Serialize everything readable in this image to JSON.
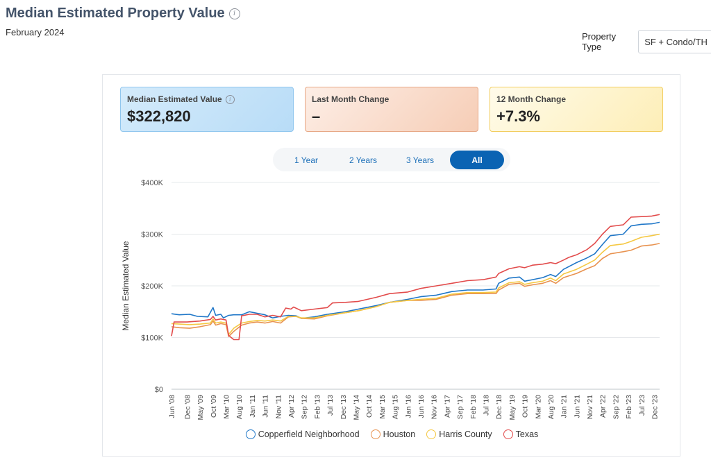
{
  "header": {
    "title": "Median Estimated Property Value",
    "subtitle": "February 2024",
    "property_type_label": "Property Type",
    "property_type_value": "SF + Condo/TH"
  },
  "cards": [
    {
      "label": "Median Estimated Value",
      "value": "$322,820",
      "has_info": true
    },
    {
      "label": "Last Month Change",
      "value": "–",
      "has_info": false
    },
    {
      "label": "12 Month Change",
      "value": "+7.3%",
      "has_info": false
    }
  ],
  "ranges": {
    "items": [
      "1 Year",
      "2 Years",
      "3 Years",
      "All"
    ],
    "active": "All"
  },
  "chart_data": {
    "type": "line",
    "title": "",
    "xlabel": "",
    "ylabel": "Median Estimated Value",
    "ylim": [
      0,
      400000
    ],
    "yticks": [
      0,
      100000,
      200000,
      300000,
      400000
    ],
    "ytick_labels": [
      "$0",
      "$100K",
      "$200K",
      "$300K",
      "$400K"
    ],
    "xlim": [
      "2008-06",
      "2024-02"
    ],
    "xtick_labels": [
      "Jun '08",
      "Dec '08",
      "May '09",
      "Oct '09",
      "Mar '10",
      "Aug '10",
      "Jan '11",
      "Jun '11",
      "Nov '11",
      "Apr '12",
      "Sep '12",
      "Feb '13",
      "Jul '13",
      "Dec '13",
      "May '14",
      "Oct '14",
      "Mar '15",
      "Aug '15",
      "Jan '16",
      "Jun '16",
      "Nov '16",
      "Apr '17",
      "Sep '17",
      "Feb '18",
      "Jul '18",
      "Dec '18",
      "May '19",
      "Oct '19",
      "Mar '20",
      "Aug '20",
      "Jan '21",
      "Jun '21",
      "Nov '21",
      "Apr '22",
      "Sep '22",
      "Feb '23",
      "Jul '23",
      "Dec '23"
    ],
    "grid": true,
    "legend": "bottom",
    "series": [
      {
        "name": "Copperfield Neighborhood",
        "color": "#1f77c8",
        "points": [
          [
            "2008-06",
            146000
          ],
          [
            "2008-09",
            144000
          ],
          [
            "2009-01",
            145000
          ],
          [
            "2009-04",
            141000
          ],
          [
            "2009-08",
            140000
          ],
          [
            "2009-10",
            158000
          ],
          [
            "2009-11",
            143000
          ],
          [
            "2010-01",
            145000
          ],
          [
            "2010-02",
            138000
          ],
          [
            "2010-04",
            143000
          ],
          [
            "2010-06",
            144000
          ],
          [
            "2010-09",
            144000
          ],
          [
            "2010-12",
            150000
          ],
          [
            "2011-03",
            147000
          ],
          [
            "2011-06",
            144000
          ],
          [
            "2011-09",
            138000
          ],
          [
            "2011-12",
            141000
          ],
          [
            "2012-03",
            143000
          ],
          [
            "2012-06",
            142000
          ],
          [
            "2012-08",
            137000
          ],
          [
            "2013-01",
            140000
          ],
          [
            "2013-06",
            145000
          ],
          [
            "2014-01",
            150000
          ],
          [
            "2014-06",
            155000
          ],
          [
            "2015-01",
            162000
          ],
          [
            "2015-06",
            168000
          ],
          [
            "2016-01",
            174000
          ],
          [
            "2016-06",
            179000
          ],
          [
            "2016-12",
            182000
          ],
          [
            "2017-06",
            189000
          ],
          [
            "2017-12",
            192000
          ],
          [
            "2018-06",
            192000
          ],
          [
            "2018-11",
            194000
          ],
          [
            "2018-12",
            205000
          ],
          [
            "2019-04",
            215000
          ],
          [
            "2019-08",
            217000
          ],
          [
            "2019-10",
            209000
          ],
          [
            "2020-01",
            212000
          ],
          [
            "2020-05",
            216000
          ],
          [
            "2020-08",
            222000
          ],
          [
            "2020-10",
            218000
          ],
          [
            "2021-01",
            232000
          ],
          [
            "2021-06",
            245000
          ],
          [
            "2021-10",
            254000
          ],
          [
            "2022-01",
            262000
          ],
          [
            "2022-04",
            280000
          ],
          [
            "2022-07",
            297000
          ],
          [
            "2022-12",
            300000
          ],
          [
            "2023-03",
            316000
          ],
          [
            "2023-07",
            319000
          ],
          [
            "2023-11",
            320000
          ],
          [
            "2024-02",
            323000
          ]
        ]
      },
      {
        "name": "Houston",
        "color": "#e8924f",
        "points": [
          [
            "2008-06",
            121000
          ],
          [
            "2008-09",
            119000
          ],
          [
            "2009-01",
            118000
          ],
          [
            "2009-05",
            121000
          ],
          [
            "2009-09",
            125000
          ],
          [
            "2009-10",
            132000
          ],
          [
            "2009-11",
            124000
          ],
          [
            "2010-01",
            127000
          ],
          [
            "2010-03",
            125000
          ],
          [
            "2010-04",
            102000
          ],
          [
            "2010-06",
            112000
          ],
          [
            "2010-09",
            124000
          ],
          [
            "2010-12",
            128000
          ],
          [
            "2011-03",
            130000
          ],
          [
            "2011-06",
            128000
          ],
          [
            "2011-09",
            131000
          ],
          [
            "2011-12",
            128000
          ],
          [
            "2012-03",
            140000
          ],
          [
            "2012-06",
            141000
          ],
          [
            "2012-08",
            137000
          ],
          [
            "2013-01",
            136000
          ],
          [
            "2013-06",
            142000
          ],
          [
            "2014-01",
            148000
          ],
          [
            "2014-06",
            152000
          ],
          [
            "2015-01",
            160000
          ],
          [
            "2015-06",
            168000
          ],
          [
            "2016-01",
            172000
          ],
          [
            "2016-06",
            172000
          ],
          [
            "2016-12",
            174000
          ],
          [
            "2017-06",
            182000
          ],
          [
            "2017-12",
            185000
          ],
          [
            "2018-06",
            185000
          ],
          [
            "2018-11",
            185000
          ],
          [
            "2018-12",
            192000
          ],
          [
            "2019-04",
            203000
          ],
          [
            "2019-08",
            205000
          ],
          [
            "2019-10",
            199000
          ],
          [
            "2020-01",
            202000
          ],
          [
            "2020-05",
            205000
          ],
          [
            "2020-08",
            210000
          ],
          [
            "2020-10",
            205000
          ],
          [
            "2021-01",
            216000
          ],
          [
            "2021-06",
            224000
          ],
          [
            "2021-10",
            233000
          ],
          [
            "2022-01",
            239000
          ],
          [
            "2022-04",
            253000
          ],
          [
            "2022-07",
            262000
          ],
          [
            "2022-12",
            266000
          ],
          [
            "2023-03",
            269000
          ],
          [
            "2023-07",
            277000
          ],
          [
            "2023-11",
            279000
          ],
          [
            "2024-02",
            282000
          ]
        ]
      },
      {
        "name": "Harris County",
        "color": "#f5c842",
        "points": [
          [
            "2008-06",
            127000
          ],
          [
            "2008-09",
            126000
          ],
          [
            "2009-01",
            125000
          ],
          [
            "2009-05",
            126000
          ],
          [
            "2009-09",
            128000
          ],
          [
            "2009-10",
            136000
          ],
          [
            "2009-11",
            128000
          ],
          [
            "2010-01",
            130000
          ],
          [
            "2010-03",
            128000
          ],
          [
            "2010-04",
            106000
          ],
          [
            "2010-06",
            118000
          ],
          [
            "2010-09",
            128000
          ],
          [
            "2010-12",
            131000
          ],
          [
            "2011-03",
            133000
          ],
          [
            "2011-06",
            132000
          ],
          [
            "2011-09",
            134000
          ],
          [
            "2011-12",
            132000
          ],
          [
            "2012-03",
            141000
          ],
          [
            "2012-06",
            141000
          ],
          [
            "2012-08",
            138000
          ],
          [
            "2013-01",
            138000
          ],
          [
            "2013-06",
            143000
          ],
          [
            "2014-01",
            148000
          ],
          [
            "2014-06",
            152000
          ],
          [
            "2015-01",
            160000
          ],
          [
            "2015-06",
            168000
          ],
          [
            "2016-01",
            172000
          ],
          [
            "2016-06",
            174000
          ],
          [
            "2016-12",
            176000
          ],
          [
            "2017-06",
            184000
          ],
          [
            "2017-12",
            187000
          ],
          [
            "2018-06",
            187000
          ],
          [
            "2018-11",
            188000
          ],
          [
            "2018-12",
            196000
          ],
          [
            "2019-04",
            206000
          ],
          [
            "2019-08",
            208000
          ],
          [
            "2019-10",
            203000
          ],
          [
            "2020-01",
            206000
          ],
          [
            "2020-05",
            209000
          ],
          [
            "2020-08",
            215000
          ],
          [
            "2020-10",
            210000
          ],
          [
            "2021-01",
            223000
          ],
          [
            "2021-06",
            232000
          ],
          [
            "2021-10",
            242000
          ],
          [
            "2022-01",
            250000
          ],
          [
            "2022-04",
            265000
          ],
          [
            "2022-07",
            278000
          ],
          [
            "2022-12",
            281000
          ],
          [
            "2023-03",
            286000
          ],
          [
            "2023-07",
            294000
          ],
          [
            "2023-11",
            297000
          ],
          [
            "2024-02",
            300000
          ]
        ]
      },
      {
        "name": "Texas",
        "color": "#e24b4b",
        "points": [
          [
            "2008-06",
            103000
          ],
          [
            "2008-07",
            130000
          ],
          [
            "2008-12",
            130000
          ],
          [
            "2009-05",
            132000
          ],
          [
            "2009-09",
            135000
          ],
          [
            "2009-10",
            141000
          ],
          [
            "2009-11",
            134000
          ],
          [
            "2010-01",
            136000
          ],
          [
            "2010-03",
            134000
          ],
          [
            "2010-04",
            104000
          ],
          [
            "2010-06",
            96000
          ],
          [
            "2010-08",
            96000
          ],
          [
            "2010-09",
            142000
          ],
          [
            "2010-12",
            145000
          ],
          [
            "2011-03",
            145000
          ],
          [
            "2011-06",
            140000
          ],
          [
            "2011-09",
            143000
          ],
          [
            "2011-12",
            140000
          ],
          [
            "2012-02",
            157000
          ],
          [
            "2012-04",
            155000
          ],
          [
            "2012-05",
            159000
          ],
          [
            "2012-08",
            152000
          ],
          [
            "2013-01",
            155000
          ],
          [
            "2013-06",
            158000
          ],
          [
            "2013-08",
            167000
          ],
          [
            "2014-01",
            168000
          ],
          [
            "2014-06",
            170000
          ],
          [
            "2015-01",
            178000
          ],
          [
            "2015-06",
            185000
          ],
          [
            "2016-01",
            188000
          ],
          [
            "2016-06",
            195000
          ],
          [
            "2016-12",
            200000
          ],
          [
            "2017-06",
            205000
          ],
          [
            "2017-12",
            210000
          ],
          [
            "2018-06",
            212000
          ],
          [
            "2018-11",
            217000
          ],
          [
            "2018-12",
            224000
          ],
          [
            "2019-04",
            233000
          ],
          [
            "2019-08",
            237000
          ],
          [
            "2019-10",
            235000
          ],
          [
            "2020-01",
            240000
          ],
          [
            "2020-05",
            242000
          ],
          [
            "2020-08",
            245000
          ],
          [
            "2020-10",
            243000
          ],
          [
            "2021-01",
            250000
          ],
          [
            "2021-03",
            255000
          ],
          [
            "2021-06",
            260000
          ],
          [
            "2021-10",
            270000
          ],
          [
            "2022-01",
            282000
          ],
          [
            "2022-04",
            300000
          ],
          [
            "2022-07",
            315000
          ],
          [
            "2022-12",
            318000
          ],
          [
            "2023-03",
            333000
          ],
          [
            "2023-07",
            334000
          ],
          [
            "2023-11",
            335000
          ],
          [
            "2024-02",
            338000
          ]
        ]
      }
    ]
  }
}
